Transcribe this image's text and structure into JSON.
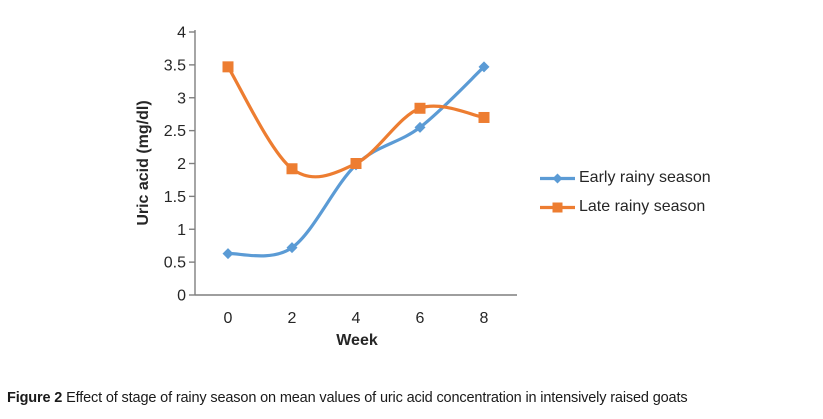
{
  "figure": {
    "caption_label": "Figure 2",
    "caption_text": "Effect of stage of rainy season on mean values of uric acid concentration in intensively raised goats"
  },
  "chart_data": {
    "type": "line",
    "title": "",
    "xlabel": "Week",
    "ylabel": "Uric acid (mg/dl)",
    "x": [
      0,
      2,
      4,
      6,
      8
    ],
    "xticks": [
      0,
      2,
      4,
      6,
      8
    ],
    "yticks": [
      0,
      0.5,
      1,
      1.5,
      2,
      2.5,
      3,
      3.5,
      4
    ],
    "ylim": [
      0,
      4
    ],
    "xlim": [
      0,
      8
    ],
    "grid": false,
    "smooth": true,
    "legend_position": "right",
    "series": [
      {
        "name": "Early rainy season",
        "values": [
          0.63,
          0.72,
          1.98,
          2.55,
          3.47
        ],
        "color": "#5B9BD5",
        "marker": "diamond"
      },
      {
        "name": "Late rainy season",
        "values": [
          3.47,
          1.92,
          2.0,
          2.84,
          2.7
        ],
        "color": "#ED7D31",
        "marker": "square"
      }
    ]
  },
  "colors": {
    "axis": "#7F7F7F",
    "tick_text": "#262626",
    "caption_text": "#1A1A1A",
    "background": "#FFFFFF"
  }
}
